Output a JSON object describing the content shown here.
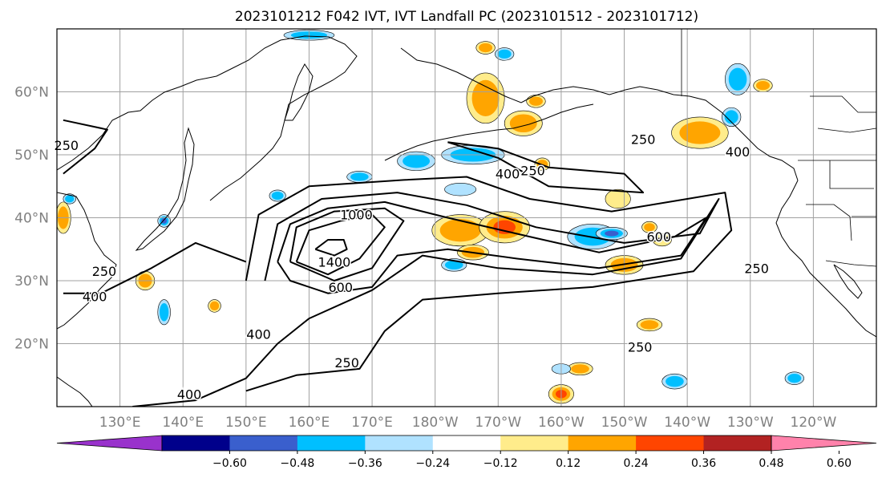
{
  "title": "2023101212 F042 IVT, IVT Landfall PC (2023101512 - 2023101712)",
  "map": {
    "lon_range": [
      120,
      250
    ],
    "lat_range": [
      10,
      70
    ],
    "lat_ticks": [
      {
        "lat": 20,
        "label": "20°N"
      },
      {
        "lat": 30,
        "label": "30°N"
      },
      {
        "lat": 40,
        "label": "40°N"
      },
      {
        "lat": 50,
        "label": "50°N"
      },
      {
        "lat": 60,
        "label": "60°N"
      }
    ],
    "lon_ticks": [
      {
        "lon": 130,
        "label": "130°E"
      },
      {
        "lon": 140,
        "label": "140°E"
      },
      {
        "lon": 150,
        "label": "150°E"
      },
      {
        "lon": 160,
        "label": "160°E"
      },
      {
        "lon": 170,
        "label": "170°E"
      },
      {
        "lon": 180,
        "label": "180°W"
      },
      {
        "lon": 190,
        "label": "170°W"
      },
      {
        "lon": 200,
        "label": "160°W"
      },
      {
        "lon": 210,
        "label": "150°W"
      },
      {
        "lon": 220,
        "label": "140°W"
      },
      {
        "lon": 230,
        "label": "130°W"
      },
      {
        "lon": 240,
        "label": "120°W"
      }
    ],
    "grid": true,
    "contour_labels": [
      {
        "text": "250",
        "lon": 121.5,
        "lat": 51.5
      },
      {
        "text": "400",
        "lon": 126,
        "lat": 27.5
      },
      {
        "text": "250",
        "lon": 127.5,
        "lat": 31.5
      },
      {
        "text": "400",
        "lon": 141,
        "lat": 12
      },
      {
        "text": "400",
        "lon": 152,
        "lat": 21.5
      },
      {
        "text": "600",
        "lon": 165,
        "lat": 29
      },
      {
        "text": "1000",
        "lon": 167.5,
        "lat": 40.5
      },
      {
        "text": "1400",
        "lon": 164,
        "lat": 33
      },
      {
        "text": "250",
        "lon": 166,
        "lat": 17
      },
      {
        "text": "400",
        "lon": 191.5,
        "lat": 47
      },
      {
        "text": "250",
        "lon": 195.5,
        "lat": 47.5
      },
      {
        "text": "600",
        "lon": 215.5,
        "lat": 37
      },
      {
        "text": "250",
        "lon": 213,
        "lat": 52.5
      },
      {
        "text": "400",
        "lon": 228,
        "lat": 50.5
      },
      {
        "text": "250",
        "lon": 231,
        "lat": 32
      },
      {
        "text": "250",
        "lon": 212.5,
        "lat": 19.5
      }
    ],
    "ivt_contours": [
      {
        "level": 1400,
        "points": [
          [
            161,
            35
          ],
          [
            163,
            36.5
          ],
          [
            165.5,
            36.5
          ],
          [
            166,
            35
          ],
          [
            164,
            34
          ],
          [
            161,
            35
          ]
        ]
      },
      {
        "level": 1000,
        "points": [
          [
            158,
            33
          ],
          [
            160,
            38
          ],
          [
            165,
            39.5
          ],
          [
            170,
            40.5
          ],
          [
            172,
            38.5
          ],
          [
            168,
            33.5
          ],
          [
            163,
            31
          ],
          [
            158,
            33
          ]
        ]
      },
      {
        "level": 800,
        "points": [
          [
            157,
            33
          ],
          [
            158,
            38.5
          ],
          [
            164,
            41
          ],
          [
            172,
            41.5
          ],
          [
            175,
            39.5
          ],
          [
            170,
            32
          ],
          [
            164,
            30
          ],
          [
            157,
            33
          ]
        ]
      },
      {
        "level": 600,
        "points": [
          [
            155,
            33
          ],
          [
            157,
            39
          ],
          [
            163,
            41.5
          ],
          [
            172,
            42.5
          ],
          [
            182,
            40
          ],
          [
            195,
            37
          ],
          [
            206,
            34.5
          ],
          [
            218,
            37
          ],
          [
            223,
            40
          ],
          [
            219,
            34
          ],
          [
            206,
            32
          ],
          [
            193,
            33.5
          ],
          [
            182,
            35
          ],
          [
            174,
            34
          ],
          [
            170,
            29
          ],
          [
            163,
            28
          ],
          [
            157,
            30
          ],
          [
            155,
            33
          ]
        ]
      },
      {
        "level": 400,
        "points": [
          [
            153,
            30
          ],
          [
            155,
            39
          ],
          [
            162,
            43
          ],
          [
            174,
            44
          ],
          [
            185,
            42
          ],
          [
            196,
            38.5
          ],
          [
            210,
            36
          ],
          [
            222,
            37.5
          ],
          [
            225,
            43
          ],
          [
            219,
            33.5
          ],
          [
            205,
            31
          ],
          [
            190,
            32
          ],
          [
            178,
            34
          ],
          [
            170,
            28.5
          ],
          [
            160,
            24
          ],
          [
            155,
            20
          ],
          [
            150,
            14.5
          ],
          [
            142,
            11
          ],
          [
            132,
            10
          ]
        ]
      },
      {
        "level": 250,
        "points": [
          [
            150,
            30
          ],
          [
            152,
            40.5
          ],
          [
            160,
            45
          ],
          [
            175,
            46
          ],
          [
            185,
            46.5
          ],
          [
            195,
            43
          ],
          [
            208,
            41
          ],
          [
            220,
            43
          ],
          [
            226,
            44
          ],
          [
            227,
            38
          ],
          [
            221,
            31.5
          ],
          [
            205,
            29
          ],
          [
            190,
            28
          ],
          [
            178,
            27
          ],
          [
            172,
            22
          ],
          [
            168,
            16
          ],
          [
            158,
            15
          ],
          [
            150,
            12.5
          ]
        ]
      },
      {
        "level": 250,
        "points": [
          [
            182,
            52
          ],
          [
            190,
            49.5
          ],
          [
            198,
            45
          ],
          [
            213,
            44
          ],
          [
            210,
            47
          ],
          [
            198,
            48
          ],
          [
            190,
            51
          ],
          [
            182,
            52
          ]
        ]
      },
      {
        "level": 250,
        "points": [
          [
            121,
            47
          ],
          [
            126,
            51
          ],
          [
            128,
            54
          ],
          [
            121,
            55.5
          ]
        ]
      },
      {
        "level": 400,
        "points": [
          [
            121,
            28
          ],
          [
            127,
            28
          ],
          [
            135,
            32
          ],
          [
            142,
            36
          ],
          [
            150,
            33
          ]
        ]
      }
    ],
    "pc_anomalies": [
      {
        "lon": 184,
        "lat": 38,
        "rx": 4.5,
        "ry": 2.5,
        "value": 0.3
      },
      {
        "lon": 191,
        "lat": 38.5,
        "rx": 4.0,
        "ry": 2.5,
        "value": 0.4
      },
      {
        "lon": 186,
        "lat": 34.5,
        "rx": 2.5,
        "ry": 1.2,
        "value": 0.26
      },
      {
        "lon": 188,
        "lat": 59,
        "rx": 3.0,
        "ry": 4.0,
        "value": 0.34
      },
      {
        "lon": 194,
        "lat": 55,
        "rx": 3.0,
        "ry": 2.0,
        "value": 0.3
      },
      {
        "lon": 210,
        "lat": 32.5,
        "rx": 3.0,
        "ry": 1.5,
        "value": 0.3
      },
      {
        "lon": 222,
        "lat": 53.5,
        "rx": 4.5,
        "ry": 2.5,
        "value": 0.28
      },
      {
        "lon": 209,
        "lat": 43,
        "rx": 2.0,
        "ry": 1.5,
        "value": 0.18
      },
      {
        "lon": 121,
        "lat": 40,
        "rx": 1.2,
        "ry": 2.5,
        "value": 0.3
      },
      {
        "lon": 134,
        "lat": 30,
        "rx": 1.5,
        "ry": 1.5,
        "value": 0.28
      },
      {
        "lon": 145,
        "lat": 26,
        "rx": 1.0,
        "ry": 1.0,
        "value": 0.26
      },
      {
        "lon": 200,
        "lat": 12,
        "rx": 2.0,
        "ry": 1.5,
        "value": 0.4
      },
      {
        "lon": 203,
        "lat": 16,
        "rx": 2.0,
        "ry": 1.0,
        "value": 0.3
      },
      {
        "lon": 214,
        "lat": 23,
        "rx": 2.0,
        "ry": 1.0,
        "value": 0.26
      },
      {
        "lon": 196,
        "lat": 58.5,
        "rx": 1.5,
        "ry": 1.0,
        "value": 0.28
      },
      {
        "lon": 232,
        "lat": 61,
        "rx": 1.5,
        "ry": 1.0,
        "value": 0.28
      },
      {
        "lon": 188,
        "lat": 67,
        "rx": 1.5,
        "ry": 1.0,
        "value": 0.26
      },
      {
        "lon": 197,
        "lat": 48.5,
        "rx": 1.2,
        "ry": 1.0,
        "value": 0.3
      },
      {
        "lon": 216,
        "lat": 36.5,
        "rx": 1.5,
        "ry": 1.0,
        "value": 0.22
      },
      {
        "lon": 214,
        "lat": 38.5,
        "rx": 1.2,
        "ry": 0.9,
        "value": 0.3
      },
      {
        "lon": 205,
        "lat": 37,
        "rx": 4.0,
        "ry": 2.0,
        "value": -0.3
      },
      {
        "lon": 208,
        "lat": 37.5,
        "rx": 2.5,
        "ry": 1.0,
        "value": -0.45
      },
      {
        "lon": 186,
        "lat": 50,
        "rx": 5.0,
        "ry": 1.5,
        "value": -0.28
      },
      {
        "lon": 177,
        "lat": 49,
        "rx": 3.0,
        "ry": 1.5,
        "value": -0.24
      },
      {
        "lon": 168,
        "lat": 46.5,
        "rx": 2.0,
        "ry": 0.9,
        "value": -0.3
      },
      {
        "lon": 155,
        "lat": 43.5,
        "rx": 1.3,
        "ry": 0.9,
        "value": -0.3
      },
      {
        "lon": 137,
        "lat": 39.5,
        "rx": 1.0,
        "ry": 1.0,
        "value": -0.4
      },
      {
        "lon": 137,
        "lat": 25,
        "rx": 1.0,
        "ry": 2.0,
        "value": -0.35
      },
      {
        "lon": 228,
        "lat": 62,
        "rx": 2.0,
        "ry": 2.5,
        "value": -0.28
      },
      {
        "lon": 227,
        "lat": 56,
        "rx": 1.5,
        "ry": 1.5,
        "value": -0.24
      },
      {
        "lon": 183,
        "lat": 32.5,
        "rx": 2.0,
        "ry": 1.0,
        "value": -0.26
      },
      {
        "lon": 218,
        "lat": 14,
        "rx": 2.0,
        "ry": 1.2,
        "value": -0.3
      },
      {
        "lon": 237,
        "lat": 14.5,
        "rx": 1.5,
        "ry": 1.0,
        "value": -0.28
      },
      {
        "lon": 191,
        "lat": 66,
        "rx": 1.5,
        "ry": 1.0,
        "value": -0.3
      },
      {
        "lon": 160,
        "lat": 69,
        "rx": 4.0,
        "ry": 0.8,
        "value": -0.26
      },
      {
        "lon": 184,
        "lat": 44.5,
        "rx": 2.5,
        "ry": 1.0,
        "value": -0.2
      },
      {
        "lon": 200,
        "lat": 16,
        "rx": 1.5,
        "ry": 0.8,
        "value": -0.22
      },
      {
        "lon": 122,
        "lat": 43,
        "rx": 1.0,
        "ry": 0.8,
        "value": -0.26
      }
    ]
  },
  "colorbar": {
    "levels": [
      -0.72,
      -0.6,
      -0.48,
      -0.36,
      -0.24,
      -0.12,
      0.12,
      0.24,
      0.36,
      0.48,
      0.6,
      0.72
    ],
    "colors": [
      "#9932cc",
      "#00008b",
      "#3a5fcd",
      "#00bfff",
      "#b0e2ff",
      "#ffffff",
      "#ffec8b",
      "#ffa500",
      "#ff4500",
      "#b22222",
      "#ff82ab"
    ],
    "tick_labels": [
      "−0.60",
      "−0.48",
      "−0.36",
      "−0.24",
      "−0.12",
      "0.12",
      "0.24",
      "0.36",
      "0.48",
      "0.60"
    ],
    "extend": "both"
  }
}
